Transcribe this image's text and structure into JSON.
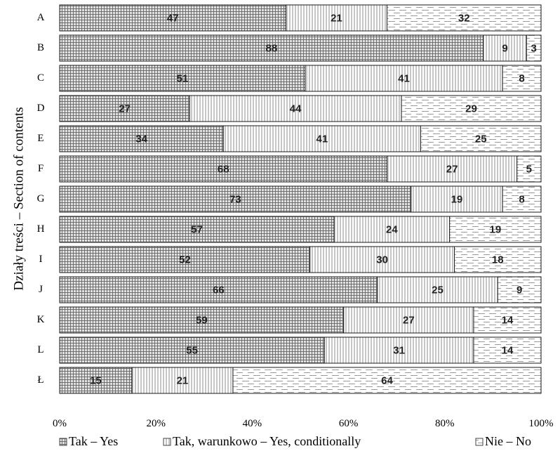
{
  "chart_data": {
    "type": "bar",
    "orientation": "horizontal",
    "stacked": true,
    "normalized_percent": true,
    "categories": [
      "A",
      "B",
      "C",
      "D",
      "E",
      "F",
      "G",
      "H",
      "I",
      "J",
      "K",
      "L",
      "Ł"
    ],
    "series": [
      {
        "name": "Tak – Yes",
        "values": [
          47,
          88,
          51,
          27,
          34,
          68,
          73,
          57,
          52,
          66,
          59,
          55,
          15
        ],
        "pattern": "grid-hatch"
      },
      {
        "name": "Tak, warunkowo – Yes, conditionally",
        "values": [
          21,
          9,
          41,
          44,
          41,
          27,
          19,
          24,
          30,
          25,
          27,
          31,
          21
        ],
        "pattern": "vertical-lines"
      },
      {
        "name": "Nie – No",
        "values": [
          32,
          3,
          8,
          29,
          25,
          5,
          8,
          19,
          18,
          9,
          14,
          14,
          64
        ],
        "pattern": "horizontal-dashes"
      }
    ],
    "xlim": [
      0,
      100
    ],
    "x_ticks": [
      "0%",
      "20%",
      "40%",
      "60%",
      "80%",
      "100%"
    ],
    "ylabel": "Działy treści – Section of contents",
    "xlabel": "",
    "title": "",
    "legend_position": "bottom",
    "grid": false
  }
}
